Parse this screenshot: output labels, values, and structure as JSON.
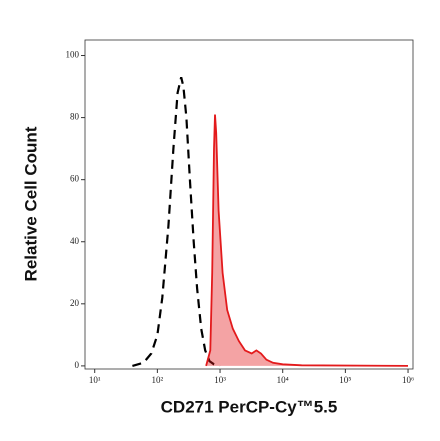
{
  "chart_data": {
    "type": "line",
    "x_label": "CD271 PerCP-Cy™5.5",
    "y_label": "Relative Cell Count",
    "x_scale": "log",
    "xlim": [
      7,
      1200000
    ],
    "ylim": [
      -1,
      105
    ],
    "xticks": [
      {
        "value": 10,
        "label": "10¹"
      },
      {
        "value": 100,
        "label": "10²"
      },
      {
        "value": 1000,
        "label": "10³"
      },
      {
        "value": 10000,
        "label": "10⁴"
      },
      {
        "value": 100000,
        "label": "10⁵"
      },
      {
        "value": 1000000,
        "label": "10⁶"
      }
    ],
    "yticks": [
      0,
      20,
      40,
      60,
      80,
      100
    ],
    "series": [
      {
        "color": "#000000",
        "dashed": true,
        "filled": false,
        "x": [
          40,
          60,
          80,
          100,
          120,
          150,
          180,
          210,
          240,
          260,
          290,
          330,
          380,
          430,
          500,
          580,
          680,
          800,
          1000
        ],
        "values": [
          0,
          1,
          4,
          10,
          22,
          45,
          70,
          88,
          93,
          90,
          80,
          60,
          40,
          25,
          12,
          5,
          1.5,
          0.5,
          0
        ]
      },
      {
        "color": "#e31a1c",
        "dashed": false,
        "filled": true,
        "x": [
          600,
          700,
          750,
          800,
          830,
          870,
          950,
          1100,
          1300,
          1600,
          2000,
          2500,
          3200,
          3800,
          4500,
          5500,
          7000,
          10000,
          20000,
          1000000
        ],
        "values": [
          0,
          5,
          30,
          70,
          81,
          75,
          50,
          30,
          18,
          12,
          8,
          5,
          4,
          5,
          4,
          2,
          1,
          0.5,
          0.2,
          0
        ]
      }
    ]
  }
}
